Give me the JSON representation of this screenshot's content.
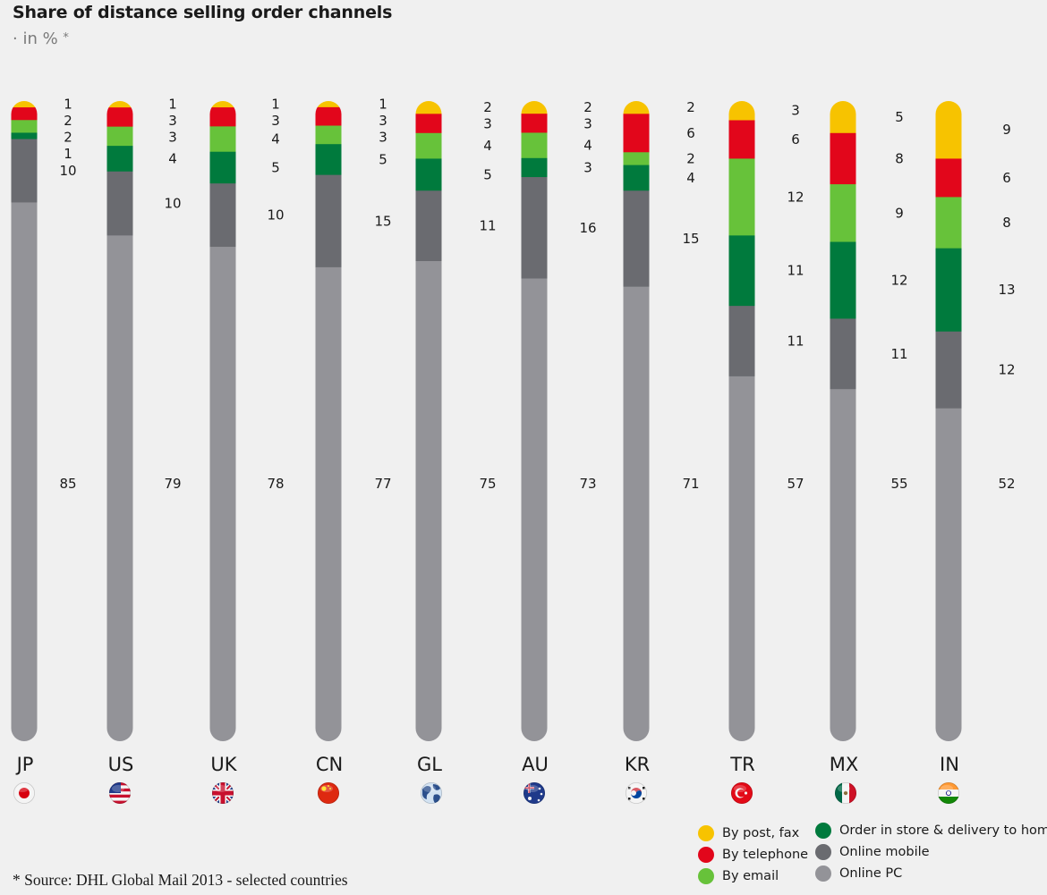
{
  "title": "Share of distance selling order channels",
  "subtitle": "· in %",
  "subtitle_star": "*",
  "source": "* Source: DHL Global Mail 2013 - selected countries",
  "colors": {
    "By post, fax": "#f7c300",
    "By telephone": "#e2061b",
    "By email": "#67c23a",
    "Order in store & delivery to home": "#007a3d",
    "Online mobile": "#6a6b70",
    "Online PC": "#939398"
  },
  "legend": [
    {
      "label": "By post, fax",
      "color": "#f7c300"
    },
    {
      "label": "By telephone",
      "color": "#e2061b"
    },
    {
      "label": "By email",
      "color": "#67c23a"
    },
    {
      "label": "Order in store & delivery to home",
      "color": "#007a3d"
    },
    {
      "label": "Online mobile",
      "color": "#6a6b70"
    },
    {
      "label": "Online PC",
      "color": "#939398"
    }
  ],
  "chart_data": {
    "type": "bar",
    "stacked": true,
    "unit": "%",
    "categories": [
      "JP",
      "US",
      "UK",
      "CN",
      "GL",
      "AU",
      "KR",
      "TR",
      "MX",
      "IN"
    ],
    "flags": [
      "japan-flag",
      "usa-flag",
      "uk-flag",
      "china-flag",
      "globe",
      "australia-flag",
      "korea-flag",
      "turkey-flag",
      "mexico-flag",
      "india-flag"
    ],
    "series": [
      {
        "name": "By post, fax",
        "values": [
          1,
          1,
          1,
          1,
          2,
          2,
          2,
          3,
          5,
          9
        ]
      },
      {
        "name": "By telephone",
        "values": [
          2,
          3,
          3,
          3,
          3,
          3,
          6,
          6,
          8,
          6
        ]
      },
      {
        "name": "By email",
        "values": [
          2,
          3,
          4,
          3,
          4,
          4,
          2,
          12,
          9,
          8
        ]
      },
      {
        "name": "Order in store & delivery to home",
        "values": [
          1,
          4,
          5,
          5,
          5,
          3,
          4,
          11,
          12,
          13
        ]
      },
      {
        "name": "Online mobile",
        "values": [
          10,
          10,
          10,
          15,
          11,
          16,
          15,
          11,
          11,
          12
        ]
      },
      {
        "name": "Online PC",
        "values": [
          85,
          79,
          78,
          77,
          75,
          73,
          71,
          57,
          55,
          52
        ]
      }
    ]
  }
}
